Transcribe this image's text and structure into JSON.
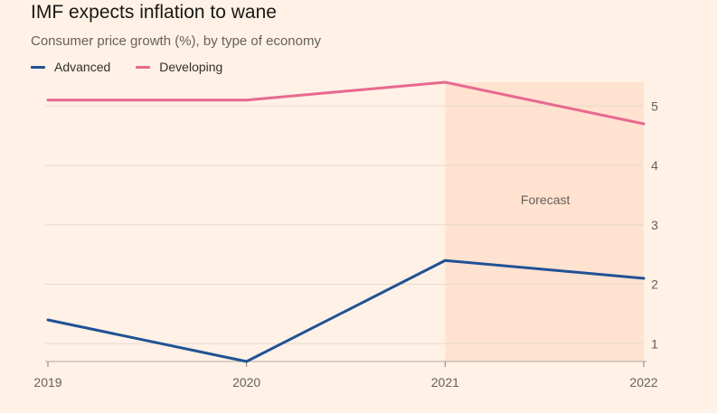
{
  "chart_data": {
    "type": "line",
    "title": "IMF expects inflation to wane",
    "subtitle": "Consumer price growth (%), by type of economy",
    "x": [
      "2019",
      "2020",
      "2021",
      "2022"
    ],
    "series": [
      {
        "name": "Advanced",
        "color": "#1f5295",
        "values": [
          1.4,
          0.7,
          2.4,
          2.1
        ]
      },
      {
        "name": "Developing",
        "color": "#e7698f",
        "values": [
          5.1,
          5.1,
          5.4,
          4.7
        ]
      }
    ],
    "ylim": [
      0.7,
      5.4
    ],
    "yticks": [
      "1",
      "2",
      "3",
      "4",
      "5"
    ],
    "grid": true,
    "legend_position": "top-left",
    "annotation": {
      "label": "Forecast",
      "from": "2021",
      "to": "2022",
      "color": "#ffe2d0"
    }
  }
}
